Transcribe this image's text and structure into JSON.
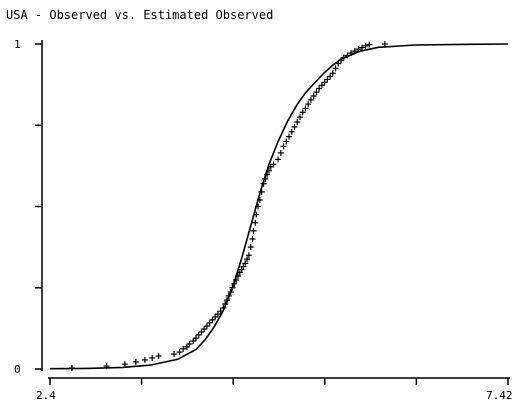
{
  "chart_data": {
    "type": "scatter",
    "title": "USA - Observed vs. Estimated Observed",
    "xlabel": "",
    "ylabel": "",
    "xlim": [
      2.4,
      7.42
    ],
    "ylim": [
      0,
      1
    ],
    "x_tick_values": [
      2.4,
      3.404,
      4.408,
      5.412,
      6.416,
      7.42
    ],
    "y_tick_values": [
      0,
      0.25,
      0.5,
      0.75,
      1
    ],
    "x_tick_labels": [
      "2.4",
      "7.42"
    ],
    "y_tick_labels": [
      "0",
      "1"
    ],
    "grid": false,
    "legend": "none",
    "series": [
      {
        "type": "scatter",
        "marker": "plus",
        "points": [
          [
            2.64,
            0.003
          ],
          [
            3.02,
            0.009
          ],
          [
            3.22,
            0.015
          ],
          [
            3.34,
            0.022
          ],
          [
            3.44,
            0.028
          ],
          [
            3.52,
            0.034
          ],
          [
            3.59,
            0.04
          ],
          [
            3.76,
            0.046
          ],
          [
            3.82,
            0.052
          ],
          [
            3.86,
            0.062
          ],
          [
            3.9,
            0.068
          ],
          [
            3.93,
            0.077
          ],
          [
            3.97,
            0.086
          ],
          [
            4.0,
            0.095
          ],
          [
            4.03,
            0.105
          ],
          [
            4.06,
            0.114
          ],
          [
            4.09,
            0.123
          ],
          [
            4.12,
            0.132
          ],
          [
            4.15,
            0.142
          ],
          [
            4.18,
            0.151
          ],
          [
            4.21,
            0.16
          ],
          [
            4.24,
            0.169
          ],
          [
            4.27,
            0.178
          ],
          [
            4.3,
            0.188
          ],
          [
            4.32,
            0.2
          ],
          [
            4.34,
            0.212
          ],
          [
            4.36,
            0.225
          ],
          [
            4.38,
            0.237
          ],
          [
            4.4,
            0.25
          ],
          [
            4.42,
            0.262
          ],
          [
            4.44,
            0.274
          ],
          [
            4.46,
            0.286
          ],
          [
            4.48,
            0.297
          ],
          [
            4.5,
            0.306
          ],
          [
            4.52,
            0.315
          ],
          [
            4.54,
            0.325
          ],
          [
            4.56,
            0.338
          ],
          [
            4.58,
            0.35
          ],
          [
            4.6,
            0.375
          ],
          [
            4.62,
            0.4
          ],
          [
            4.63,
            0.425
          ],
          [
            4.65,
            0.45
          ],
          [
            4.66,
            0.475
          ],
          [
            4.68,
            0.5
          ],
          [
            4.7,
            0.52
          ],
          [
            4.72,
            0.545
          ],
          [
            4.74,
            0.57
          ],
          [
            4.76,
            0.585
          ],
          [
            4.78,
            0.598
          ],
          [
            4.8,
            0.61
          ],
          [
            4.82,
            0.622
          ],
          [
            4.85,
            0.63
          ],
          [
            4.9,
            0.645
          ],
          [
            4.93,
            0.665
          ],
          [
            4.96,
            0.685
          ],
          [
            4.99,
            0.7
          ],
          [
            5.02,
            0.715
          ],
          [
            5.05,
            0.73
          ],
          [
            5.08,
            0.745
          ],
          [
            5.11,
            0.76
          ],
          [
            5.14,
            0.775
          ],
          [
            5.17,
            0.79
          ],
          [
            5.2,
            0.802
          ],
          [
            5.23,
            0.815
          ],
          [
            5.26,
            0.828
          ],
          [
            5.29,
            0.84
          ],
          [
            5.32,
            0.852
          ],
          [
            5.35,
            0.863
          ],
          [
            5.38,
            0.873
          ],
          [
            5.41,
            0.882
          ],
          [
            5.44,
            0.891
          ],
          [
            5.47,
            0.9
          ],
          [
            5.5,
            0.91
          ],
          [
            5.53,
            0.925
          ],
          [
            5.56,
            0.94
          ],
          [
            5.59,
            0.95
          ],
          [
            5.62,
            0.958
          ],
          [
            5.66,
            0.965
          ],
          [
            5.7,
            0.972
          ],
          [
            5.74,
            0.978
          ],
          [
            5.78,
            0.984
          ],
          [
            5.82,
            0.989
          ],
          [
            5.86,
            0.994
          ],
          [
            5.9,
            0.998
          ],
          [
            6.07,
            1.0
          ]
        ]
      },
      {
        "type": "line",
        "points": [
          [
            2.4,
            0.001
          ],
          [
            2.8,
            0.002
          ],
          [
            3.2,
            0.005
          ],
          [
            3.5,
            0.012
          ],
          [
            3.8,
            0.03
          ],
          [
            4.0,
            0.06
          ],
          [
            4.1,
            0.09
          ],
          [
            4.2,
            0.13
          ],
          [
            4.3,
            0.18
          ],
          [
            4.4,
            0.25
          ],
          [
            4.5,
            0.34
          ],
          [
            4.6,
            0.44
          ],
          [
            4.7,
            0.54
          ],
          [
            4.8,
            0.63
          ],
          [
            4.9,
            0.7
          ],
          [
            5.0,
            0.76
          ],
          [
            5.1,
            0.81
          ],
          [
            5.2,
            0.85
          ],
          [
            5.3,
            0.88
          ],
          [
            5.4,
            0.91
          ],
          [
            5.5,
            0.935
          ],
          [
            5.6,
            0.955
          ],
          [
            5.8,
            0.978
          ],
          [
            6.0,
            0.99
          ],
          [
            6.4,
            0.997
          ],
          [
            7.0,
            0.999
          ],
          [
            7.42,
            1.0
          ]
        ]
      }
    ]
  }
}
